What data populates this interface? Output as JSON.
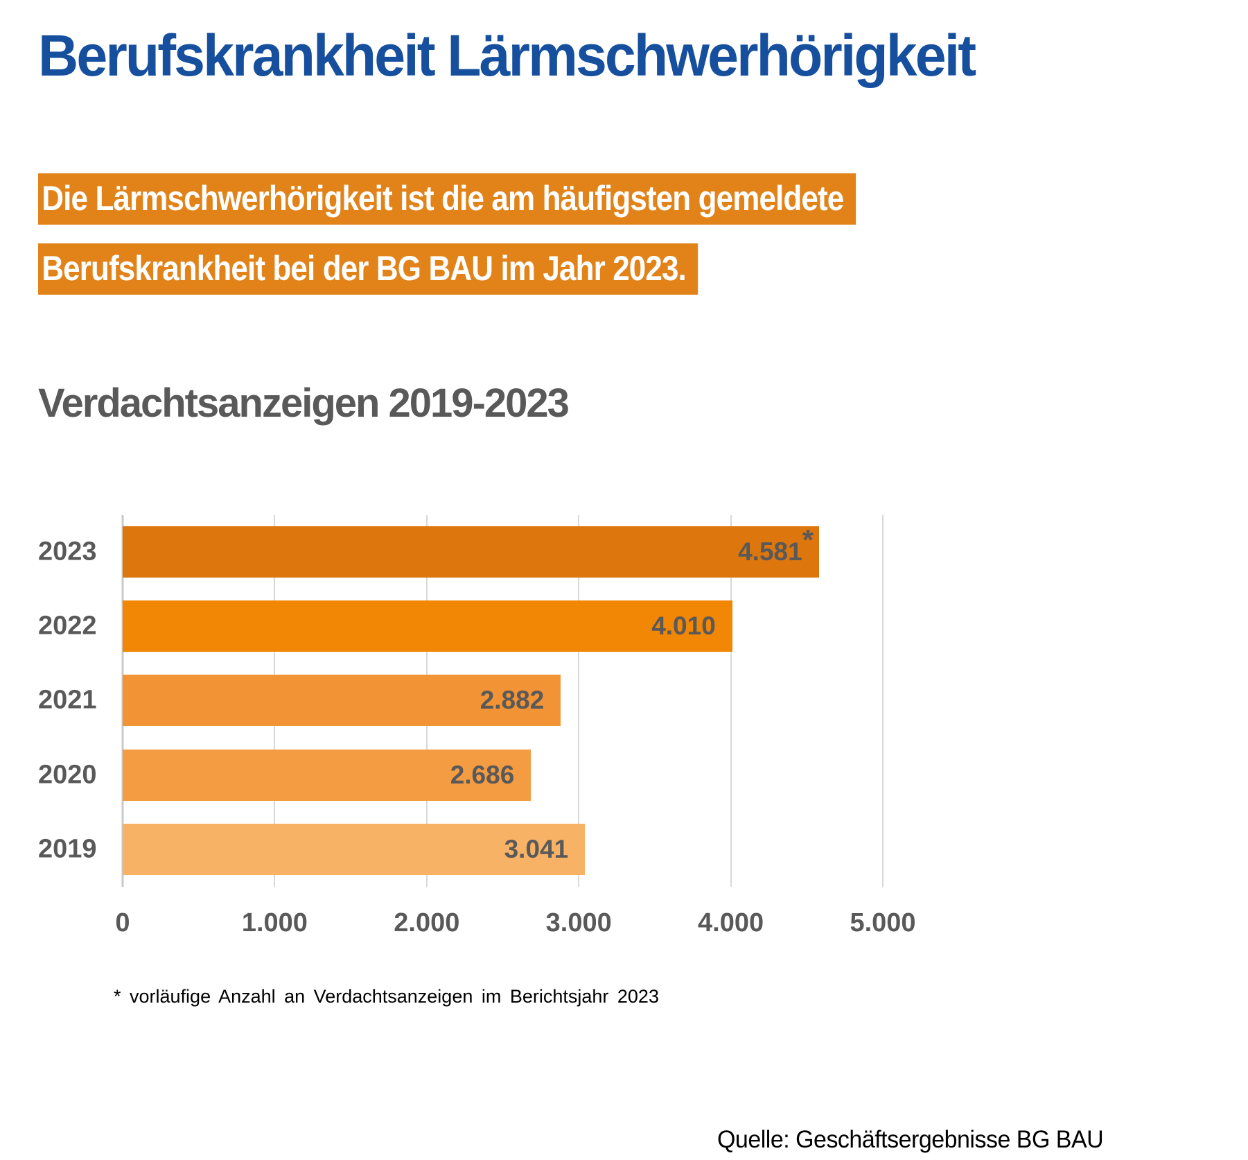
{
  "page": {
    "title": "Berufskrankheit Lärmschwerhörigkeit",
    "highlight_lines": [
      "Die Lärmschwerhörigkeit ist die am häufigsten gemeldete",
      "Berufskrankheit bei der BG BAU im Jahr 2023."
    ],
    "footnote": "* vorläufige Anzahl an Verdachtsanzeigen im Berichtsjahr 2023",
    "source": "Quelle: Geschäftsergebnisse BG BAU"
  },
  "colors": {
    "title_blue": "#164F9E",
    "highlight_orange": "#E2831A",
    "label_gray": "#595959",
    "grid_gray": "#D9D9D9"
  },
  "chart_data": {
    "type": "bar",
    "orientation": "horizontal",
    "title": "Verdachtsanzeigen 2019-2023",
    "categories": [
      "2023",
      "2022",
      "2021",
      "2020",
      "2019"
    ],
    "values": [
      4581,
      4010,
      2882,
      2686,
      3041
    ],
    "value_labels": [
      "4.581",
      "4.010",
      "2.882",
      "2.686",
      "3.041"
    ],
    "value_suffixes": [
      "*",
      "",
      "",
      "",
      ""
    ],
    "bar_colors": [
      "#DC760D",
      "#F18705",
      "#F29436",
      "#F49C42",
      "#F8B265"
    ],
    "xlabel": "",
    "ylabel": "",
    "xlim": [
      0,
      5000
    ],
    "xticks": [
      0,
      1000,
      2000,
      3000,
      4000,
      5000
    ],
    "xtick_labels": [
      "0",
      "1.000",
      "2.000",
      "3.000",
      "4.000",
      "5.000"
    ],
    "grid": true,
    "legend": false,
    "value_labels_position": "inside-end"
  }
}
